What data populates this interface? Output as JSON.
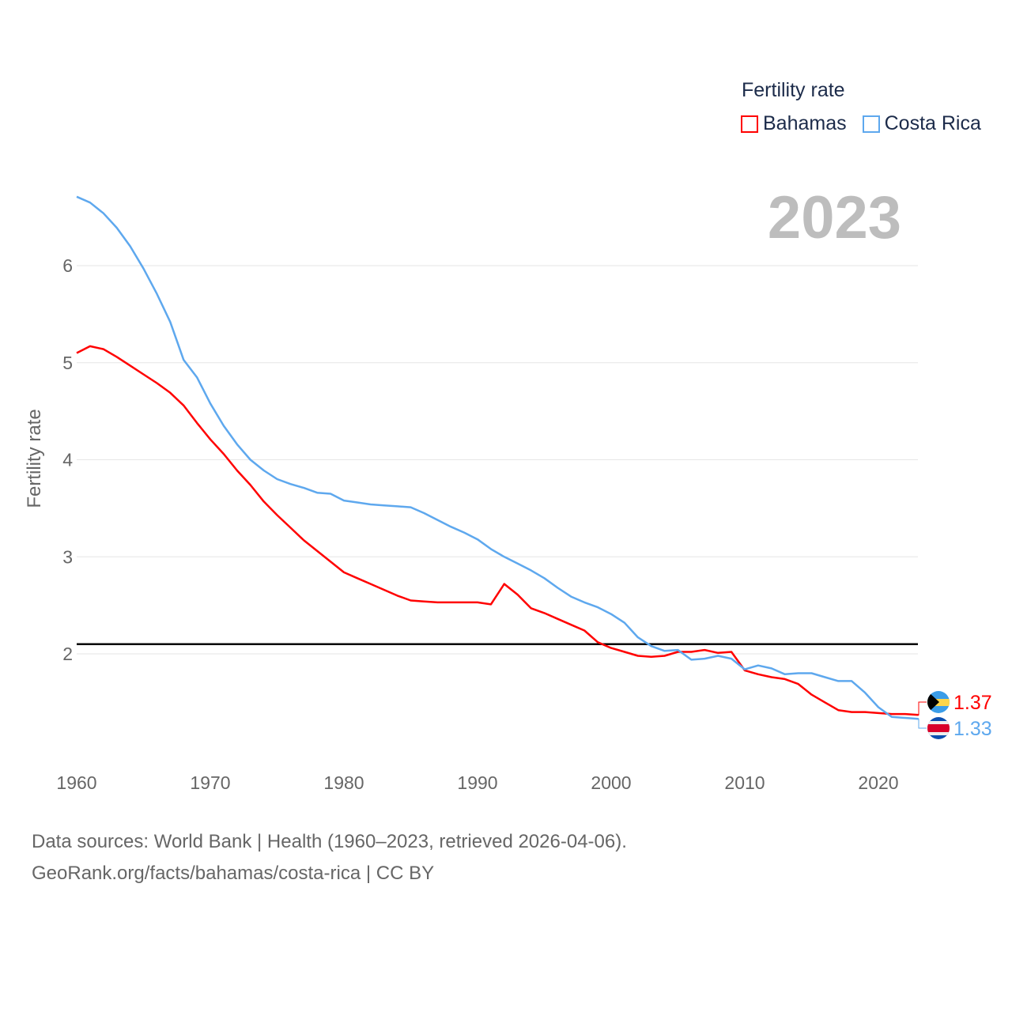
{
  "chart_data": {
    "type": "line",
    "title": "",
    "legend_title": "Fertility rate",
    "legend_position": "top-right",
    "ylabel": "Fertility rate",
    "xlabel": "",
    "xlim": [
      1960,
      2023
    ],
    "ylim": [
      1,
      6.8
    ],
    "x_ticks": [
      1960,
      1970,
      1980,
      1990,
      2000,
      2010,
      2020
    ],
    "y_ticks": [
      2,
      3,
      4,
      5,
      6
    ],
    "grid": true,
    "reference_line": {
      "value": 2.1,
      "color": "#000000"
    },
    "current_year": "2023",
    "x": [
      1960,
      1961,
      1962,
      1963,
      1964,
      1965,
      1966,
      1967,
      1968,
      1969,
      1970,
      1971,
      1972,
      1973,
      1974,
      1975,
      1976,
      1977,
      1978,
      1979,
      1980,
      1981,
      1982,
      1983,
      1984,
      1985,
      1986,
      1987,
      1988,
      1989,
      1990,
      1991,
      1992,
      1993,
      1994,
      1995,
      1996,
      1997,
      1998,
      1999,
      2000,
      2001,
      2002,
      2003,
      2004,
      2005,
      2006,
      2007,
      2008,
      2009,
      2010,
      2011,
      2012,
      2013,
      2014,
      2015,
      2016,
      2017,
      2018,
      2019,
      2020,
      2021,
      2022,
      2023
    ],
    "series": [
      {
        "name": "Bahamas",
        "color": "#ff0000",
        "end_label": "1.37",
        "values": [
          5.1,
          5.17,
          5.14,
          5.06,
          4.97,
          4.88,
          4.79,
          4.69,
          4.56,
          4.38,
          4.21,
          4.06,
          3.89,
          3.74,
          3.57,
          3.43,
          3.3,
          3.17,
          3.06,
          2.95,
          2.84,
          2.78,
          2.72,
          2.66,
          2.6,
          2.55,
          2.54,
          2.53,
          2.53,
          2.53,
          2.53,
          2.51,
          2.72,
          2.61,
          2.47,
          2.42,
          2.36,
          2.3,
          2.24,
          2.12,
          2.06,
          2.02,
          1.98,
          1.97,
          1.98,
          2.02,
          2.02,
          2.04,
          2.01,
          2.02,
          1.83,
          1.79,
          1.76,
          1.74,
          1.69,
          1.58,
          1.5,
          1.42,
          1.4,
          1.4,
          1.39,
          1.38,
          1.38,
          1.37
        ]
      },
      {
        "name": "Costa Rica",
        "color": "#5ea8ee",
        "end_label": "1.33",
        "values": [
          6.71,
          6.65,
          6.54,
          6.39,
          6.2,
          5.97,
          5.71,
          5.42,
          5.03,
          4.85,
          4.58,
          4.35,
          4.16,
          4.0,
          3.89,
          3.8,
          3.75,
          3.71,
          3.66,
          3.65,
          3.58,
          3.56,
          3.54,
          3.53,
          3.52,
          3.51,
          3.45,
          3.38,
          3.31,
          3.25,
          3.18,
          3.08,
          3.0,
          2.93,
          2.86,
          2.78,
          2.68,
          2.59,
          2.53,
          2.48,
          2.41,
          2.32,
          2.17,
          2.08,
          2.03,
          2.04,
          1.94,
          1.95,
          1.98,
          1.95,
          1.84,
          1.88,
          1.85,
          1.79,
          1.8,
          1.8,
          1.76,
          1.72,
          1.72,
          1.6,
          1.45,
          1.35,
          1.34,
          1.33
        ]
      }
    ]
  },
  "footer": {
    "line1": "Data sources: World Bank | Health (1960–2023, retrieved 2026-04-06).",
    "line2": "GeoRank.org/facts/bahamas/costa-rica | CC BY"
  }
}
